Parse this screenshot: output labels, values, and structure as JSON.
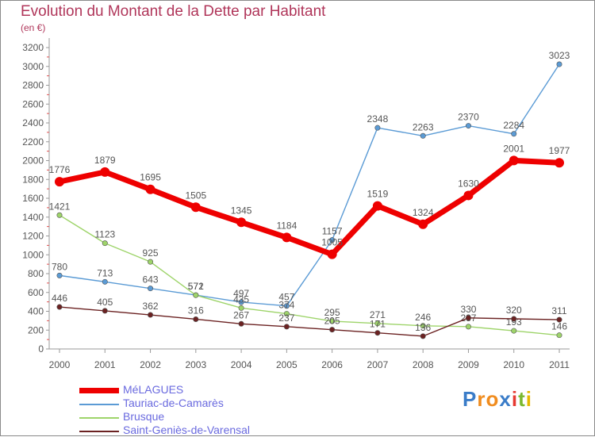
{
  "title": "Evolution du Montant de la Dette par Habitant",
  "unit": "(en €)",
  "brand": {
    "letters": [
      {
        "ch": "P",
        "color": "#3a7cc8"
      },
      {
        "ch": "r",
        "color": "#f08c1e"
      },
      {
        "ch": "o",
        "color": "#f08c1e"
      },
      {
        "ch": "x",
        "color": "#3a7cc8"
      },
      {
        "ch": "i",
        "color": "#e63a32"
      },
      {
        "ch": "t",
        "color": "#7ab82e"
      },
      {
        "ch": "i",
        "color": "#e6b800"
      }
    ]
  },
  "chart_data": {
    "type": "line",
    "title": "Evolution du Montant de la Dette par Habitant",
    "ylabel": "(en €)",
    "xlabel": "",
    "x": [
      "2000",
      "2001",
      "2002",
      "2003",
      "2004",
      "2005",
      "2006",
      "2007",
      "2008",
      "2009",
      "2010",
      "2011"
    ],
    "ylim": [
      0,
      3200
    ],
    "yticks": [
      0,
      200,
      400,
      600,
      800,
      1000,
      1200,
      1400,
      1600,
      1800,
      2000,
      2200,
      2400,
      2600,
      2800,
      3000,
      3200
    ],
    "grid": false,
    "legend_position": "bottom-left",
    "series": [
      {
        "name": "MéLAGUES",
        "color": "#ee0000",
        "thick": true,
        "values": [
          1776,
          1879,
          1695,
          1505,
          1345,
          1184,
          1005,
          1519,
          1324,
          1630,
          2001,
          1977
        ]
      },
      {
        "name": "Tauriac-de-Camarès",
        "color": "#5b9bd5",
        "thick": false,
        "values": [
          780,
          713,
          643,
          572,
          497,
          457,
          1157,
          2348,
          2263,
          2370,
          2284,
          3023
        ]
      },
      {
        "name": "Brusque",
        "color": "#9ed46a",
        "thick": false,
        "values": [
          1421,
          1123,
          925,
          571,
          435,
          374,
          295,
          271,
          246,
          237,
          193,
          146
        ]
      },
      {
        "name": "Saint-Geniès-de-Varensal",
        "color": "#6b2222",
        "thick": false,
        "values": [
          446,
          405,
          362,
          316,
          267,
          237,
          205,
          171,
          136,
          330,
          320,
          311
        ]
      }
    ]
  }
}
